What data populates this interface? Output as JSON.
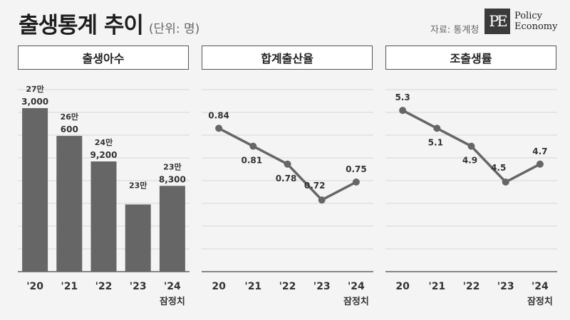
{
  "header": {
    "title": "출생통계 추이",
    "unit": "(단위: 명)",
    "source": "자료: 통계청",
    "logo_mark": "PE",
    "logo_line1": "Policy",
    "logo_line2": "Economy"
  },
  "colors": {
    "bar": "#666666",
    "line": "#666666",
    "grid": "#d6d6d6",
    "axis": "#444444",
    "background": "#f4f4f4"
  },
  "chart_data": [
    {
      "type": "bar",
      "title": "출생아수",
      "categories": [
        "'20",
        "'21",
        "'22",
        "'23",
        "'24"
      ],
      "values": [
        273000,
        260600,
        249200,
        230000,
        238300
      ],
      "value_labels": [
        [
          "27만",
          "3,000"
        ],
        [
          "26만",
          "600"
        ],
        [
          "24만",
          "9,200"
        ],
        [
          "23만",
          ""
        ],
        [
          "23만",
          "8,300"
        ]
      ],
      "note": "잠정치",
      "ylim": [
        200000,
        280000
      ]
    },
    {
      "type": "line",
      "title": "합계출산율",
      "categories": [
        "20",
        "'21",
        "'22",
        "'23",
        "'24"
      ],
      "values": [
        0.84,
        0.81,
        0.78,
        0.72,
        0.75
      ],
      "value_labels": [
        "0.84",
        "0.81",
        "0.78",
        "0.72",
        "0.75"
      ],
      "note": "잠정치",
      "ylim": [
        0.6,
        0.9
      ]
    },
    {
      "type": "line",
      "title": "조출생률",
      "categories": [
        "20",
        "'21",
        "'22",
        "'23",
        "'24"
      ],
      "values": [
        5.3,
        5.1,
        4.9,
        4.5,
        4.7
      ],
      "value_labels": [
        "5.3",
        "5.1",
        "4.9",
        "4.5",
        "4.7"
      ],
      "note": "잠정치",
      "ylim": [
        3.5,
        5.5
      ]
    }
  ]
}
